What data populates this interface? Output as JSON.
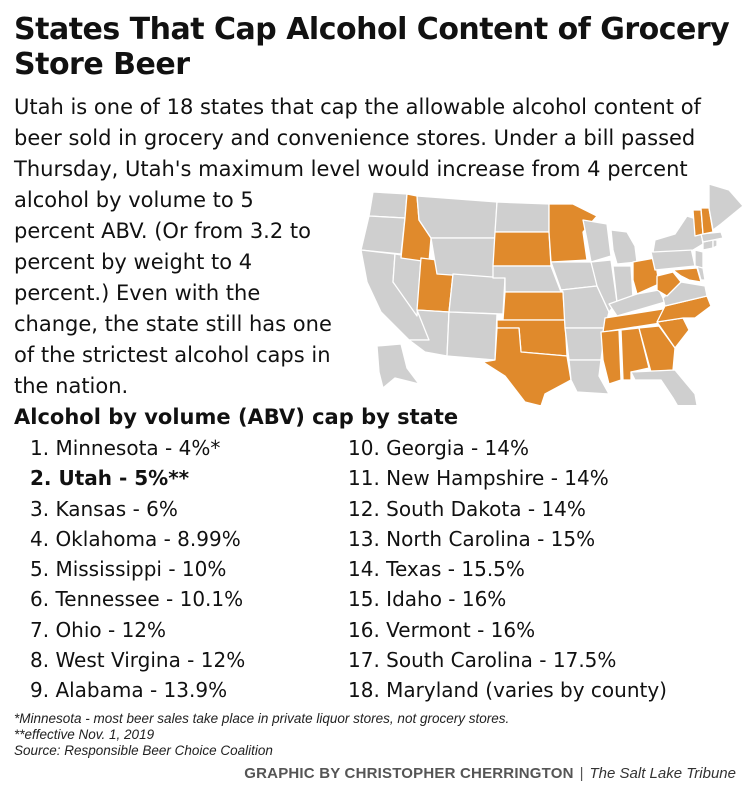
{
  "title": "States That Cap Alcohol Content of Grocery Store Beer",
  "intro": {
    "top": "Utah is one of 18 states that cap the allowable alcohol content of beer sold in grocery and convenience stores. Under a bill passed Thursday, Utah's maximum level would increase from 4 percent",
    "side": "alcohol by volume to 5 percent ABV. (Or from 3.2 to percent by weight to 4 percent.) Even with the change, the state still has one of the strictest alcohol caps in the nation."
  },
  "colors": {
    "capped_state": "#e08a2c",
    "uncapped_state": "#cfcfcf",
    "border": "#ffffff",
    "text": "#111111"
  },
  "map": {
    "highlighted_states": [
      "Minnesota",
      "Utah",
      "Kansas",
      "Oklahoma",
      "Mississippi",
      "Tennessee",
      "Ohio",
      "West Virginia",
      "Alabama",
      "Georgia",
      "New Hampshire",
      "South Dakota",
      "North Carolina",
      "Texas",
      "Idaho",
      "Vermont",
      "South Carolina",
      "Maryland"
    ]
  },
  "list": {
    "heading": "Alcohol by volume (ABV) cap by state",
    "items": [
      {
        "text": "1. Minnesota - 4%*",
        "bold": false
      },
      {
        "text": "2. Utah - 5%**",
        "bold": true
      },
      {
        "text": "3. Kansas - 6%",
        "bold": false
      },
      {
        "text": "4. Oklahoma - 8.99%",
        "bold": false
      },
      {
        "text": "5. Mississippi - 10%",
        "bold": false
      },
      {
        "text": "6. Tennessee - 10.1%",
        "bold": false
      },
      {
        "text": "7. Ohio - 12%",
        "bold": false
      },
      {
        "text": "8. West Virgina - 12%",
        "bold": false
      },
      {
        "text": "9. Alabama - 13.9%",
        "bold": false
      },
      {
        "text": "10. Georgia - 14%",
        "bold": false
      },
      {
        "text": "11. New Hampshire - 14%",
        "bold": false
      },
      {
        "text": "12. South Dakota - 14%",
        "bold": false
      },
      {
        "text": "13. North Carolina - 15%",
        "bold": false
      },
      {
        "text": "14. Texas - 15.5%",
        "bold": false
      },
      {
        "text": "15. Idaho - 16%",
        "bold": false
      },
      {
        "text": "16. Vermont - 16%",
        "bold": false
      },
      {
        "text": "17. South Carolina - 17.5%",
        "bold": false
      },
      {
        "text": "18. Maryland (varies by county)",
        "bold": false
      }
    ]
  },
  "footnotes": [
    "*Minnesota - most beer sales take place in private liquor stores, not grocery stores.",
    "**effective Nov. 1, 2019",
    "Source: Responsible Beer Choice Coalition"
  ],
  "credit": {
    "graphic": "GRAPHIC BY CHRISTOPHER CHERRINGTON",
    "separator": "|",
    "publication": "The Salt Lake Tribune"
  }
}
